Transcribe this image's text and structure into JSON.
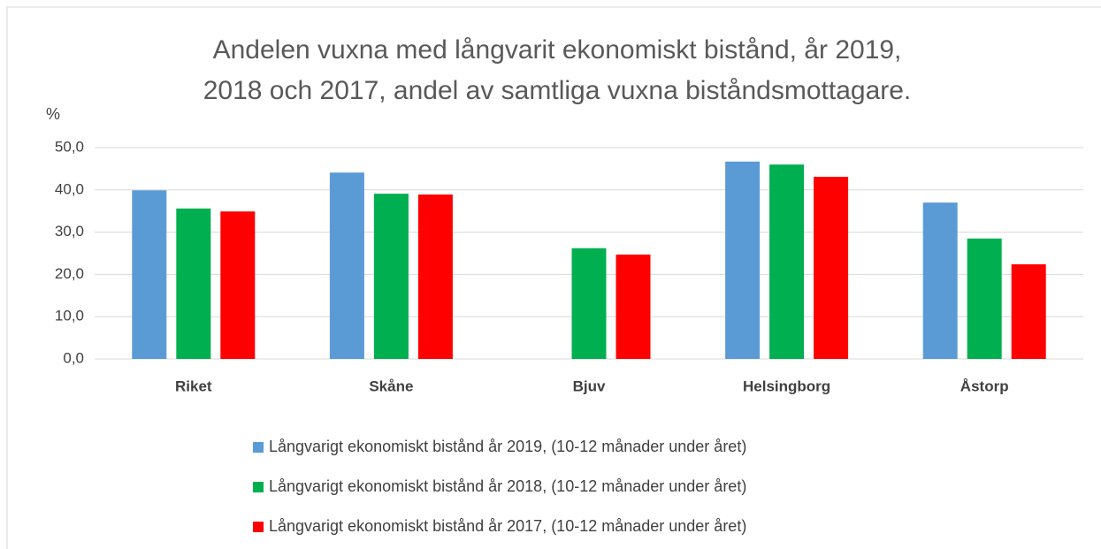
{
  "chart_data": {
    "type": "bar",
    "title": [
      "Andelen vuxna med långvarit ekonomiskt bistånd, år 2019,",
      "2018 och 2017, andel av samtliga vuxna biståndsmottagare."
    ],
    "y_label": "%",
    "categories": [
      "Riket",
      "Skåne",
      "Bjuv",
      "Helsingborg",
      "Åstorp"
    ],
    "series": [
      {
        "name": "Långvarigt ekonomiskt bistånd år 2019, (10-12 månader under året)",
        "color": "#5b9bd5",
        "values": [
          39.9,
          44.1,
          null,
          46.7,
          37.0
        ]
      },
      {
        "name": "Långvarigt ekonomiskt bistånd år 2018, (10-12 månader under året)",
        "color": "#00b050",
        "values": [
          35.6,
          39.1,
          26.2,
          46.0,
          28.5
        ]
      },
      {
        "name": "Långvarigt ekonomiskt bistånd år 2017, (10-12 månader under året)",
        "color": "#ff0000",
        "values": [
          34.9,
          38.9,
          24.7,
          43.1,
          22.4
        ]
      }
    ],
    "ylim": [
      0,
      50
    ],
    "yticks": [
      {
        "value": 0,
        "label": "0,0"
      },
      {
        "value": 10,
        "label": "10,0"
      },
      {
        "value": 20,
        "label": "20,0"
      },
      {
        "value": 30,
        "label": "30,0"
      },
      {
        "value": 40,
        "label": "40,0"
      },
      {
        "value": 50,
        "label": "50,0"
      }
    ],
    "grid": true,
    "legend": "bottom"
  }
}
